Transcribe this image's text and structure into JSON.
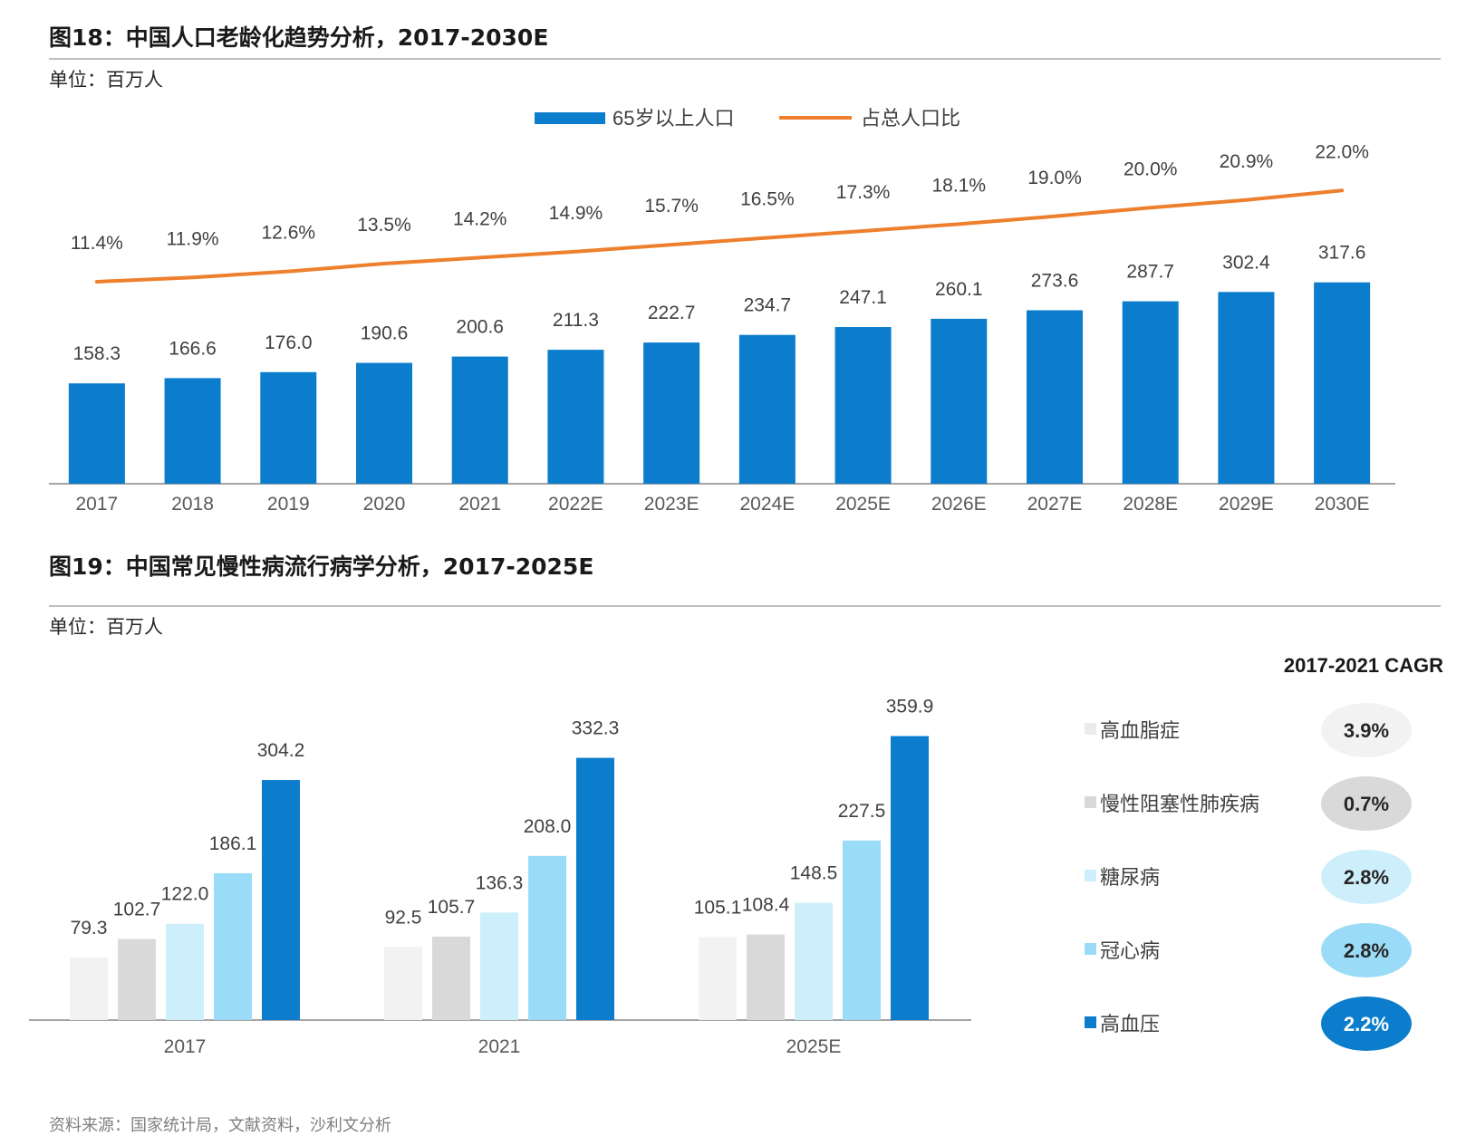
{
  "fig18": {
    "title": "图18：中国人口老龄化趋势分析，2017-2030E",
    "unit": "单位：百万人"
  },
  "fig19": {
    "title": "图19：中国常见慢性病流行病学分析，2017-2025E",
    "unit": "单位：百万人",
    "cagr_header": "2017-2021 CAGR"
  },
  "source": "资料来源：国家统计局，文献资料，沙利文分析",
  "chart_data": [
    {
      "type": "bar",
      "categories": [
        "2017",
        "2018",
        "2019",
        "2020",
        "2021",
        "2022E",
        "2023E",
        "2024E",
        "2025E",
        "2026E",
        "2027E",
        "2028E",
        "2029E",
        "2030E"
      ],
      "series": [
        {
          "name": "65岁以上人口",
          "type": "bar",
          "values": [
            158.3,
            166.6,
            176.0,
            190.6,
            200.6,
            211.3,
            222.7,
            234.7,
            247.1,
            260.1,
            273.6,
            287.7,
            302.4,
            317.6
          ],
          "labels": [
            "158.3",
            "166.6",
            "176.0",
            "190.6",
            "200.6",
            "211.3",
            "222.7",
            "234.7",
            "247.1",
            "260.1",
            "273.6",
            "287.7",
            "302.4",
            "317.6"
          ],
          "color": "#0b7dcc"
        },
        {
          "name": "占总人口比",
          "type": "line",
          "values": [
            11.4,
            11.9,
            12.6,
            13.5,
            14.2,
            14.9,
            15.7,
            16.5,
            17.3,
            18.1,
            19.0,
            20.0,
            20.9,
            22.0
          ],
          "labels": [
            "11.4%",
            "11.9%",
            "12.6%",
            "13.5%",
            "14.2%",
            "14.9%",
            "15.7%",
            "16.5%",
            "17.3%",
            "18.1%",
            "19.0%",
            "20.0%",
            "20.9%",
            "22.0%"
          ],
          "color": "#ee7f2d"
        }
      ],
      "legend_position": "top-center",
      "grid": false
    },
    {
      "type": "bar",
      "categories": [
        "2017",
        "2021",
        "2025E"
      ],
      "series": [
        {
          "name": "高血脂症",
          "values": [
            79.3,
            92.5,
            105.1
          ],
          "labels": [
            "79.3",
            "92.5",
            "105.1"
          ],
          "color": "#f2f2f2",
          "cagr": "3.9%"
        },
        {
          "name": "慢性阻塞性肺疾病",
          "values": [
            102.7,
            105.7,
            108.4
          ],
          "labels": [
            "102.7",
            "105.7",
            "108.4"
          ],
          "color": "#d9d9d9",
          "cagr": "0.7%"
        },
        {
          "name": "糖尿病",
          "values": [
            122.0,
            136.3,
            148.5
          ],
          "labels": [
            "122.0",
            "136.3",
            "148.5"
          ],
          "color": "#cdeffb",
          "cagr": "2.8%"
        },
        {
          "name": "冠心病",
          "values": [
            186.1,
            208.0,
            227.5
          ],
          "labels": [
            "186.1",
            "208.0",
            "227.5"
          ],
          "color": "#9adcf7",
          "cagr": "2.8%"
        },
        {
          "name": "高血压",
          "values": [
            304.2,
            332.3,
            359.9
          ],
          "labels": [
            "304.2",
            "332.3",
            "359.9"
          ],
          "color": "#0b7dcc",
          "cagr": "2.2%"
        }
      ],
      "legend_position": "right",
      "grid": false
    }
  ]
}
